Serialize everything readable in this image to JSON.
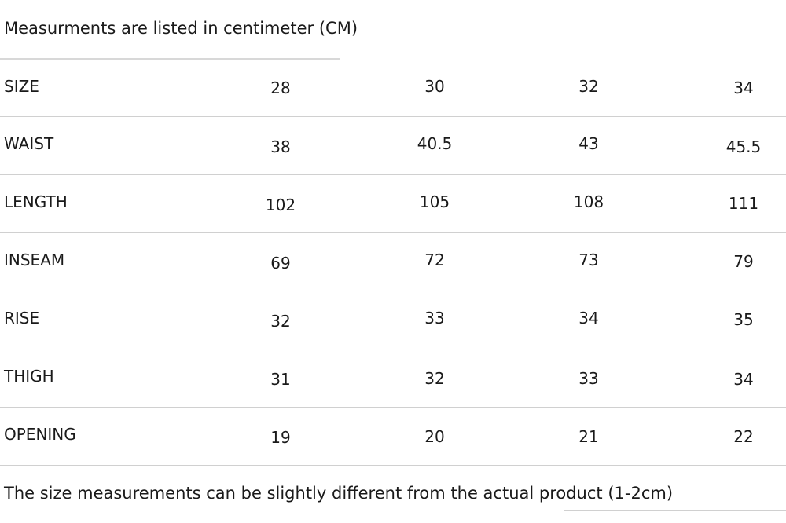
{
  "header_note": "Measurments are listed in centimeter (CM)",
  "footer_note": "The size measurements can be slightly different from the actual product (1-2cm)",
  "table": {
    "rows": [
      {
        "label": "SIZE",
        "values": [
          "28",
          "30",
          "32",
          "34"
        ]
      },
      {
        "label": "WAIST",
        "values": [
          "38",
          "40.5",
          "43",
          "45.5"
        ]
      },
      {
        "label": "LENGTH",
        "values": [
          "102",
          "105",
          "108",
          "111"
        ]
      },
      {
        "label": "INSEAM",
        "values": [
          "69",
          "72",
          "73",
          "79"
        ]
      },
      {
        "label": "RISE",
        "values": [
          "32",
          "33",
          "34",
          "35"
        ]
      },
      {
        "label": "THIGH",
        "values": [
          "31",
          "32",
          "33",
          "34"
        ]
      },
      {
        "label": "OPENING",
        "values": [
          "19",
          "20",
          "21",
          "22"
        ]
      }
    ]
  }
}
